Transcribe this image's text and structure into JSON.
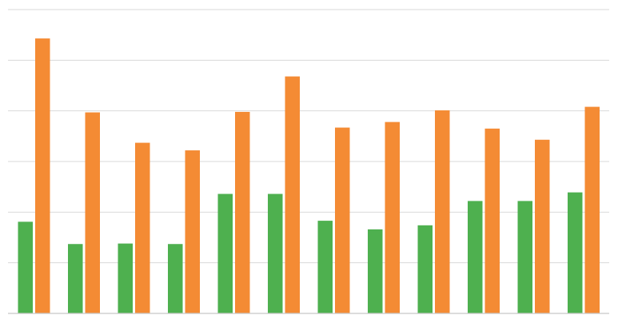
{
  "chart_data": {
    "type": "bar",
    "title": "",
    "xlabel": "",
    "ylabel": "",
    "ylim": [
      0,
      6
    ],
    "grid": true,
    "legend": "none",
    "categories": [
      "",
      "",
      "",
      "",
      "",
      "",
      "",
      "",
      "",
      "",
      "",
      ""
    ],
    "series": [
      {
        "color": "#4eb04f",
        "values": [
          1.81,
          1.37,
          1.38,
          1.37,
          2.36,
          2.36,
          1.83,
          1.66,
          1.74,
          2.22,
          2.22,
          2.39
        ]
      },
      {
        "color": "#f48b34",
        "values": [
          5.43,
          3.97,
          3.37,
          3.22,
          3.98,
          4.68,
          3.67,
          3.78,
          4.01,
          3.65,
          3.43,
          4.08
        ]
      }
    ]
  }
}
